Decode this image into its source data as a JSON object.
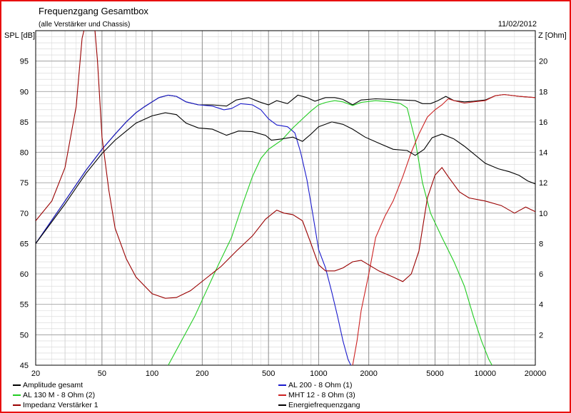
{
  "chart_data": {
    "type": "line",
    "title": "Frequenzgang Gesamtbox",
    "subtitle": "(alle Verstärker und Chassis)",
    "date": "11/02/2012",
    "ylabel_left": "SPL [dB]",
    "ylabel_right": "Z [Ohm]",
    "xscale": "log",
    "xlim": [
      20,
      20000
    ],
    "ylim_left": [
      45,
      100
    ],
    "ylim_right": [
      0,
      22
    ],
    "x_ticks": [
      "20",
      "50",
      "100",
      "200",
      "500",
      "1000",
      "2000",
      "5000",
      "10000",
      "20000"
    ],
    "y_ticks_left": [
      "45",
      "50",
      "55",
      "60",
      "65",
      "70",
      "75",
      "80",
      "85",
      "90",
      "95"
    ],
    "y_ticks_right": [
      "2",
      "4",
      "6",
      "8",
      "10",
      "12",
      "14",
      "16",
      "18",
      "20"
    ],
    "grid": true,
    "legend_position": "bottom",
    "series": [
      {
        "name": "Amplitude gesamt",
        "color": "#000000",
        "axis": "left",
        "points": [
          [
            20,
            65
          ],
          [
            30,
            72
          ],
          [
            40,
            77
          ],
          [
            50,
            80.5
          ],
          [
            60,
            83
          ],
          [
            70,
            85
          ],
          [
            80,
            86.5
          ],
          [
            90,
            87.5
          ],
          [
            100,
            88.3
          ],
          [
            110,
            89
          ],
          [
            125,
            89.4
          ],
          [
            140,
            89.2
          ],
          [
            160,
            88.3
          ],
          [
            190,
            87.8
          ],
          [
            230,
            87.8
          ],
          [
            280,
            87.6
          ],
          [
            320,
            88.6
          ],
          [
            380,
            89
          ],
          [
            440,
            88.3
          ],
          [
            500,
            87.8
          ],
          [
            560,
            88.5
          ],
          [
            650,
            88
          ],
          [
            750,
            89.4
          ],
          [
            850,
            89
          ],
          [
            950,
            88.4
          ],
          [
            1100,
            89
          ],
          [
            1250,
            89
          ],
          [
            1400,
            88.7
          ],
          [
            1600,
            87.8
          ],
          [
            1800,
            88.6
          ],
          [
            2200,
            88.8
          ],
          [
            2700,
            88.7
          ],
          [
            3200,
            88.6
          ],
          [
            3800,
            88.5
          ],
          [
            4200,
            88
          ],
          [
            4700,
            88
          ],
          [
            5200,
            88.5
          ],
          [
            5800,
            89.2
          ],
          [
            6500,
            88.5
          ],
          [
            7500,
            88.3
          ],
          [
            8500,
            88.4
          ],
          [
            10000,
            88.6
          ],
          [
            11500,
            89.3
          ],
          [
            13000,
            89.5
          ],
          [
            16000,
            89.2
          ],
          [
            20000,
            89
          ]
        ]
      },
      {
        "name": "AL 200 - 8 Ohm (1)",
        "color": "#1a1acc",
        "axis": "left",
        "points": [
          [
            20,
            65
          ],
          [
            30,
            72
          ],
          [
            40,
            77
          ],
          [
            50,
            80.5
          ],
          [
            60,
            83
          ],
          [
            70,
            85
          ],
          [
            80,
            86.5
          ],
          [
            90,
            87.5
          ],
          [
            100,
            88.3
          ],
          [
            110,
            89
          ],
          [
            125,
            89.4
          ],
          [
            140,
            89.2
          ],
          [
            160,
            88.3
          ],
          [
            190,
            87.8
          ],
          [
            230,
            87.6
          ],
          [
            270,
            87
          ],
          [
            300,
            87.2
          ],
          [
            340,
            88
          ],
          [
            400,
            87.8
          ],
          [
            450,
            87
          ],
          [
            500,
            85.5
          ],
          [
            560,
            84.5
          ],
          [
            650,
            84.2
          ],
          [
            720,
            83.2
          ],
          [
            780,
            80
          ],
          [
            850,
            75.5
          ],
          [
            920,
            70
          ],
          [
            1000,
            64
          ],
          [
            1100,
            61
          ],
          [
            1200,
            57
          ],
          [
            1300,
            53
          ],
          [
            1400,
            49
          ],
          [
            1500,
            46
          ],
          [
            1560,
            45
          ]
        ]
      },
      {
        "name": "AL 130 M - 8 Ohm (2)",
        "color": "#22cc22",
        "axis": "left",
        "points": [
          [
            125,
            45
          ],
          [
            150,
            49
          ],
          [
            180,
            53
          ],
          [
            210,
            57
          ],
          [
            250,
            61.5
          ],
          [
            300,
            66
          ],
          [
            350,
            71.5
          ],
          [
            400,
            76
          ],
          [
            450,
            79
          ],
          [
            500,
            80.5
          ],
          [
            600,
            82
          ],
          [
            700,
            84
          ],
          [
            800,
            85.5
          ],
          [
            900,
            86.8
          ],
          [
            1000,
            87.8
          ],
          [
            1100,
            88.2
          ],
          [
            1250,
            88.5
          ],
          [
            1400,
            88.3
          ],
          [
            1600,
            87.7
          ],
          [
            1800,
            88.2
          ],
          [
            2200,
            88.5
          ],
          [
            2700,
            88.3
          ],
          [
            3100,
            88
          ],
          [
            3400,
            87.3
          ],
          [
            3800,
            82
          ],
          [
            4200,
            75
          ],
          [
            4700,
            70
          ],
          [
            5500,
            66
          ],
          [
            6500,
            62
          ],
          [
            7500,
            58
          ],
          [
            8500,
            53
          ],
          [
            9500,
            49
          ],
          [
            10500,
            46
          ],
          [
            11000,
            45
          ]
        ]
      },
      {
        "name": "MHT 12 - 8 Ohm (3)",
        "color": "#cc2222",
        "axis": "left",
        "points": [
          [
            1600,
            45
          ],
          [
            1700,
            49
          ],
          [
            1800,
            54
          ],
          [
            2000,
            60
          ],
          [
            2200,
            66
          ],
          [
            2500,
            69.5
          ],
          [
            2800,
            72
          ],
          [
            3200,
            76
          ],
          [
            3600,
            80
          ],
          [
            4000,
            83
          ],
          [
            4500,
            85.8
          ],
          [
            5000,
            87
          ],
          [
            5500,
            87.8
          ],
          [
            6000,
            88.8
          ],
          [
            6500,
            88.5
          ],
          [
            7500,
            88.1
          ],
          [
            8500,
            88.3
          ],
          [
            10000,
            88.5
          ],
          [
            11500,
            89.3
          ],
          [
            13000,
            89.5
          ],
          [
            16000,
            89.2
          ],
          [
            20000,
            89
          ]
        ]
      },
      {
        "name": "Impedanz Verstärker 1",
        "color": "#990000",
        "axis": "right",
        "points": [
          [
            20,
            9.5
          ],
          [
            25,
            10.8
          ],
          [
            30,
            13
          ],
          [
            35,
            17
          ],
          [
            38,
            21.5
          ],
          [
            40,
            22.5
          ],
          [
            45,
            22.5
          ],
          [
            47,
            20
          ],
          [
            50,
            15
          ],
          [
            55,
            11.5
          ],
          [
            60,
            9
          ],
          [
            70,
            7
          ],
          [
            80,
            5.8
          ],
          [
            100,
            4.7
          ],
          [
            120,
            4.4
          ],
          [
            140,
            4.45
          ],
          [
            170,
            4.9
          ],
          [
            210,
            5.7
          ],
          [
            260,
            6.5
          ],
          [
            320,
            7.5
          ],
          [
            400,
            8.5
          ],
          [
            480,
            9.6
          ],
          [
            560,
            10.2
          ],
          [
            620,
            10
          ],
          [
            700,
            9.9
          ],
          [
            800,
            9.5
          ],
          [
            900,
            8
          ],
          [
            1000,
            6.6
          ],
          [
            1100,
            6.2
          ],
          [
            1250,
            6.2
          ],
          [
            1400,
            6.4
          ],
          [
            1600,
            6.8
          ],
          [
            1800,
            6.9
          ],
          [
            2000,
            6.6
          ],
          [
            2300,
            6.2
          ],
          [
            2800,
            5.8
          ],
          [
            3200,
            5.5
          ],
          [
            3600,
            6
          ],
          [
            4000,
            7.5
          ],
          [
            4500,
            11
          ],
          [
            5000,
            12.5
          ],
          [
            5500,
            13
          ],
          [
            6000,
            12.4
          ],
          [
            7000,
            11.4
          ],
          [
            8000,
            11
          ],
          [
            10000,
            10.8
          ],
          [
            12500,
            10.5
          ],
          [
            15000,
            10
          ],
          [
            17500,
            10.4
          ],
          [
            20000,
            10.1
          ]
        ]
      },
      {
        "name": "Energiefrequenzgang",
        "color": "#000000",
        "axis": "left",
        "points": [
          [
            20,
            65
          ],
          [
            30,
            71.5
          ],
          [
            40,
            76.5
          ],
          [
            50,
            79.8
          ],
          [
            60,
            82
          ],
          [
            70,
            83.5
          ],
          [
            80,
            84.8
          ],
          [
            100,
            86
          ],
          [
            120,
            86.5
          ],
          [
            140,
            86.2
          ],
          [
            160,
            84.8
          ],
          [
            190,
            84
          ],
          [
            230,
            83.8
          ],
          [
            280,
            82.8
          ],
          [
            330,
            83.5
          ],
          [
            400,
            83.4
          ],
          [
            480,
            82.8
          ],
          [
            520,
            82
          ],
          [
            600,
            82.2
          ],
          [
            700,
            82.5
          ],
          [
            800,
            81.8
          ],
          [
            900,
            83
          ],
          [
            1000,
            84.2
          ],
          [
            1200,
            85
          ],
          [
            1400,
            84.6
          ],
          [
            1600,
            83.8
          ],
          [
            1900,
            82.5
          ],
          [
            2300,
            81.5
          ],
          [
            2800,
            80.5
          ],
          [
            3400,
            80.3
          ],
          [
            3800,
            79.5
          ],
          [
            4300,
            80.5
          ],
          [
            4800,
            82.4
          ],
          [
            5500,
            83
          ],
          [
            6500,
            82.2
          ],
          [
            7500,
            81
          ],
          [
            8500,
            79.8
          ],
          [
            10000,
            78.2
          ],
          [
            12000,
            77.3
          ],
          [
            14000,
            76.8
          ],
          [
            16000,
            76.2
          ],
          [
            18000,
            75.3
          ],
          [
            20000,
            74.8
          ]
        ]
      }
    ]
  }
}
